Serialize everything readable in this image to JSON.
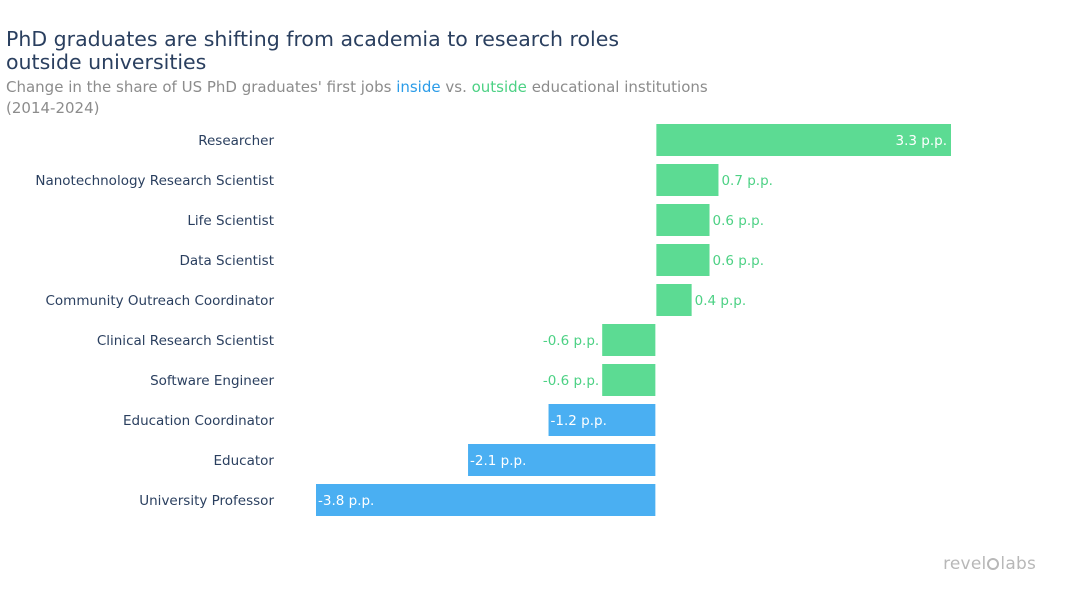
{
  "header": {
    "title": "PhD graduates are shifting from academia to research roles outside universities",
    "subtitle_pre": "Change in the share of US PhD graduates' first jobs ",
    "subtitle_inside": "inside",
    "subtitle_mid": " vs. ",
    "subtitle_outside": "outside",
    "subtitle_post": " educational institutions",
    "subtitle_period": "(2014-2024)"
  },
  "colors": {
    "inside": "#4aaff2",
    "outside": "#5cdb93",
    "inside_text": "#2b9ce8",
    "outside_text": "#4cd184"
  },
  "chart_data": {
    "type": "bar",
    "orientation": "horizontal",
    "title": "PhD graduates are shifting from academia to research roles outside universities",
    "subtitle": "Change in the share of US PhD graduates' first jobs inside vs. outside educational institutions (2014-2024)",
    "unit_suffix": " p.p.",
    "xlim": [
      -3.8,
      3.3
    ],
    "bars": [
      {
        "category": "Researcher",
        "value": 3.3,
        "label": "3.3 p.p.",
        "group": "outside"
      },
      {
        "category": "Nanotechnology Research Scientist",
        "value": 0.7,
        "label": "0.7 p.p.",
        "group": "outside"
      },
      {
        "category": "Life Scientist",
        "value": 0.6,
        "label": "0.6 p.p.",
        "group": "outside"
      },
      {
        "category": "Data Scientist",
        "value": 0.6,
        "label": "0.6 p.p.",
        "group": "outside"
      },
      {
        "category": "Community Outreach Coordinator",
        "value": 0.4,
        "label": "0.4 p.p.",
        "group": "outside"
      },
      {
        "category": "Clinical Research Scientist",
        "value": -0.6,
        "label": "-0.6 p.p.",
        "group": "outside"
      },
      {
        "category": "Software Engineer",
        "value": -0.6,
        "label": "-0.6 p.p.",
        "group": "outside"
      },
      {
        "category": "Education Coordinator",
        "value": -1.2,
        "label": "-1.2 p.p.",
        "group": "inside"
      },
      {
        "category": "Educator",
        "value": -2.1,
        "label": "-2.1 p.p.",
        "group": "inside"
      },
      {
        "category": "University Professor",
        "value": -3.8,
        "label": "-3.8 p.p.",
        "group": "inside"
      }
    ]
  },
  "branding": {
    "logo_text_left": "revel",
    "logo_text_right": "labs"
  }
}
